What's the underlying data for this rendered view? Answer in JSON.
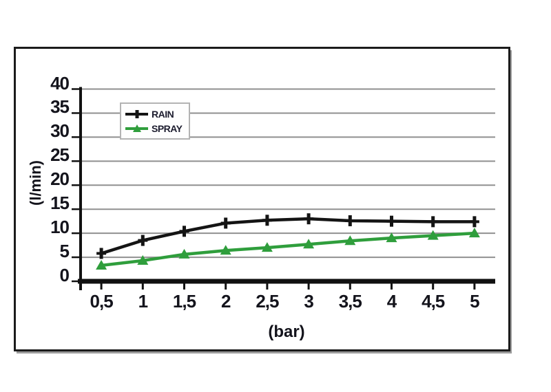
{
  "page": {
    "background": "#ffffff",
    "frame_border_color": "#1b1b1b",
    "frame_shadow_color": "#9b9b9b"
  },
  "chart_data": {
    "type": "line",
    "title": "",
    "xlabel": "(bar)",
    "ylabel": "(l/min)",
    "x": [
      0.5,
      1,
      1.5,
      2,
      2.5,
      3,
      3.5,
      4,
      4.5,
      5
    ],
    "xticklabels": [
      "0,5",
      "1",
      "1,5",
      "2",
      "2,5",
      "3",
      "3,5",
      "4",
      "4,5",
      "5"
    ],
    "yticks": [
      0,
      5,
      10,
      15,
      20,
      25,
      30,
      35,
      40
    ],
    "ylim": [
      0,
      40
    ],
    "grid": "horizontal",
    "legend_position": "upper-left-inside",
    "series": [
      {
        "name": "RAIN",
        "color": "#141414",
        "marker": "plus",
        "values": [
          5.8,
          8.5,
          10.4,
          12.1,
          12.7,
          13.0,
          12.6,
          12.5,
          12.4,
          12.4
        ]
      },
      {
        "name": "SPRAY",
        "color": "#2f9e3c",
        "marker": "triangle-up",
        "values": [
          3.3,
          4.3,
          5.6,
          6.4,
          7.0,
          7.7,
          8.4,
          9.0,
          9.5,
          10.0
        ]
      }
    ],
    "colors": {
      "gridline": "#8f8f8f",
      "axis": "#111111",
      "tick_text": "#14141c"
    }
  }
}
